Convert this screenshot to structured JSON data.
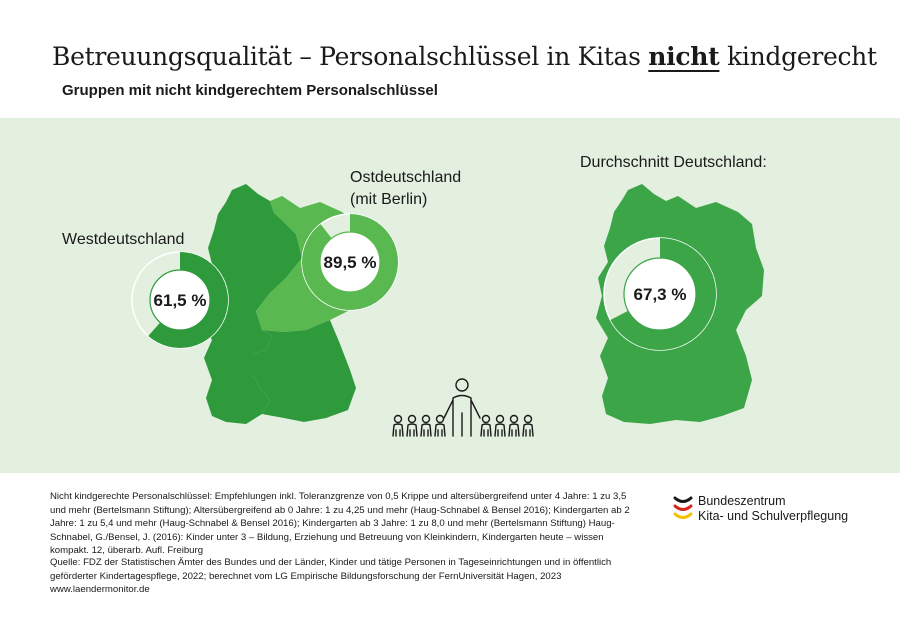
{
  "title": {
    "prefix": "Betreuungsqualität – Personalschlüssel in Kitas ",
    "emphasis": "nicht",
    "suffix": " kindgerecht"
  },
  "subtitle": "Gruppen mit nicht kindgerechtem Personalschlüssel",
  "chart_data": [
    {
      "type": "pie",
      "title": "Westdeutschland",
      "labels": [
        "nicht kindgerecht"
      ],
      "values": [
        61.5
      ],
      "value_label": "61,5 %"
    },
    {
      "type": "pie",
      "title_lines": [
        "Ostdeutschland",
        "(mit Berlin)"
      ],
      "labels": [
        "nicht kindgerecht"
      ],
      "values": [
        89.5
      ],
      "value_label": "89,5 %"
    },
    {
      "type": "pie",
      "title": "Durchschnitt Deutschland:",
      "labels": [
        "nicht kindgerecht"
      ],
      "values": [
        67.3
      ],
      "value_label": "67,3 %"
    }
  ],
  "colors": {
    "panel_background": "#e3efdf",
    "west": "#2e9a3c",
    "east": "#59b84f",
    "germany": "#3ba548",
    "ring_remainder": "#e3efdf"
  },
  "icons": [
    "adult-and-children-icon"
  ],
  "footnote": "Nicht kindgerechte Personalschlüssel: Empfehlungen inkl. Toleranzgrenze von 0,5 Krippe und altersübergreifend unter 4 Jahre: 1 zu 3,5 und mehr (Bertelsmann Stiftung); Altersübergreifend ab 0 Jahre: 1 zu 4,25 und mehr (Haug-Schnabel & Bensel 2016); Kindergarten ab 2 Jahre: 1 zu 5,4 und mehr (Haug-Schnabel & Bensel 2016); Kindergarten ab 3 Jahre: 1 zu 8,0 und mehr (Bertelsmann Stiftung) Haug-Schnabel, G./Bensel, J. (2016): Kinder unter 3 – Bildung, Erziehung und Betreuung von Kleinkindern, Kindergarten heute – wissen kompakt. 12, überarb. Aufl. Freiburg",
  "source": "Quelle: FDZ der Statistischen Ämter des Bundes und der Länder, Kinder und tätige Personen in Tageseinrichtungen und in öffentlich geförderter Kindertagespflege, 2022; berechnet vom LG Empirische Bildungsforschung der FernUniversität Hagen, 2023",
  "url": "www.laendermonitor.de",
  "logo": {
    "line1": "Bundeszentrum",
    "line2": "Kita- und Schulverpflegung"
  }
}
